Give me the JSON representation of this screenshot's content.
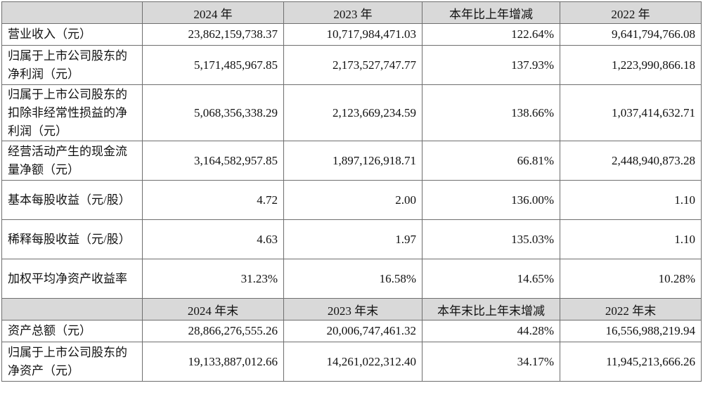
{
  "header1": {
    "blank": "",
    "col1": "2024 年",
    "col2": "2023 年",
    "col3": "本年比上年增减",
    "col4": "2022 年"
  },
  "rows1": [
    {
      "label": "营业收入（元）",
      "v2024": "23,862,159,738.37",
      "v2023": "10,717,984,471.03",
      "change": "122.64%",
      "v2022": "9,641,794,766.08"
    },
    {
      "label": "归属于上市公司股东的净利润（元）",
      "v2024": "5,171,485,967.85",
      "v2023": "2,173,527,747.77",
      "change": "137.93%",
      "v2022": "1,223,990,866.18"
    },
    {
      "label": "归属于上市公司股东的扣除非经常性损益的净利润（元）",
      "v2024": "5,068,356,338.29",
      "v2023": "2,123,669,234.59",
      "change": "138.66%",
      "v2022": "1,037,414,632.71"
    },
    {
      "label": "经营活动产生的现金流量净额（元）",
      "v2024": "3,164,582,957.85",
      "v2023": "1,897,126,918.71",
      "change": "66.81%",
      "v2022": "2,448,940,873.28"
    },
    {
      "label": "基本每股收益（元/股）",
      "v2024": "4.72",
      "v2023": "2.00",
      "change": "136.00%",
      "v2022": "1.10"
    },
    {
      "label": "稀释每股收益（元/股）",
      "v2024": "4.63",
      "v2023": "1.97",
      "change": "135.03%",
      "v2022": "1.10"
    },
    {
      "label": "加权平均净资产收益率",
      "v2024": "31.23%",
      "v2023": "16.58%",
      "change": "14.65%",
      "v2022": "10.28%"
    }
  ],
  "header2": {
    "blank": "",
    "col1": "2024 年末",
    "col2": "2023 年末",
    "col3": "本年末比上年末增减",
    "col4": "2022 年末"
  },
  "rows2": [
    {
      "label": "资产总额（元）",
      "v2024": "28,866,276,555.26",
      "v2023": "20,006,747,461.32",
      "change": "44.28%",
      "v2022": "16,556,988,219.94"
    },
    {
      "label": "归属于上市公司股东的净资产（元）",
      "v2024": "19,133,887,012.66",
      "v2023": "14,261,022,312.40",
      "change": "34.17%",
      "v2022": "11,945,213,666.26"
    }
  ]
}
